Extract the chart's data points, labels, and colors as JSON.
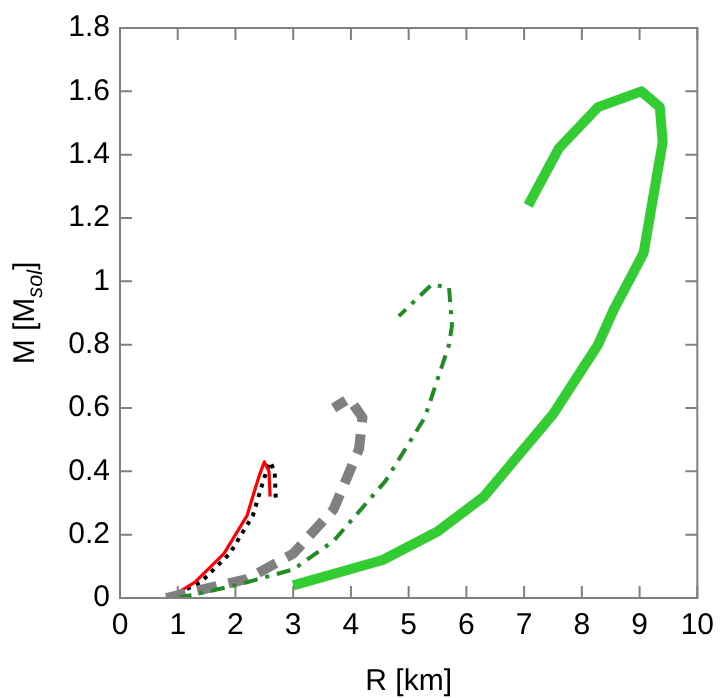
{
  "chart_data": {
    "type": "line",
    "xlabel": "R [km]",
    "ylabel": "M [M$_{sol}$]",
    "xlim": [
      0,
      10
    ],
    "xticks": [
      0,
      1,
      2,
      3,
      4,
      5,
      6,
      7,
      8,
      9,
      10
    ],
    "ylim": [
      0,
      1.8
    ],
    "yticks": [
      0,
      0.2,
      0.4,
      0.6,
      0.8,
      1,
      1.2,
      1.4,
      1.6,
      1.8
    ],
    "grid": false,
    "legend": false,
    "marker": "none",
    "series": [
      {
        "color": "#33cc33",
        "line_style": "solid",
        "x": [
          3.0,
          4.55,
          5.5,
          6.3,
          7.5,
          8.28,
          8.55,
          9.07,
          9.4,
          9.35,
          9.03,
          8.28,
          7.6,
          7.07
        ],
        "values": [
          0.04,
          0.12,
          0.21,
          0.32,
          0.58,
          0.8,
          0.91,
          1.09,
          1.44,
          1.55,
          1.6,
          1.55,
          1.42,
          1.24
        ]
      },
      {
        "color": "#228b22",
        "line_style": "dashdot",
        "x": [
          1.0,
          2.0,
          3.0,
          3.7,
          4.6,
          5.28,
          5.7,
          5.75,
          5.7,
          5.4,
          4.83
        ],
        "values": [
          0.0,
          0.04,
          0.09,
          0.18,
          0.37,
          0.57,
          0.8,
          0.86,
          0.98,
          0.99,
          0.89
        ]
      },
      {
        "color": "#808080",
        "line_style": "dashed",
        "x": [
          0.8,
          2.2,
          3.0,
          3.7,
          4.14,
          4.2,
          3.97,
          3.7
        ],
        "values": [
          0.0,
          0.06,
          0.14,
          0.28,
          0.47,
          0.57,
          0.63,
          0.6
        ]
      },
      {
        "color": "#ff0000",
        "line_style": "solid",
        "x": [
          0.85,
          1.3,
          1.8,
          2.2,
          2.4,
          2.5,
          2.58,
          2.6
        ],
        "values": [
          0.0,
          0.05,
          0.14,
          0.26,
          0.38,
          0.43,
          0.4,
          0.32
        ]
      },
      {
        "color": "#000000",
        "line_style": "dotted",
        "x": [
          0.85,
          1.4,
          1.9,
          2.3,
          2.5,
          2.6,
          2.68,
          2.7
        ],
        "values": [
          0.0,
          0.05,
          0.14,
          0.26,
          0.38,
          0.43,
          0.4,
          0.3
        ]
      }
    ]
  }
}
